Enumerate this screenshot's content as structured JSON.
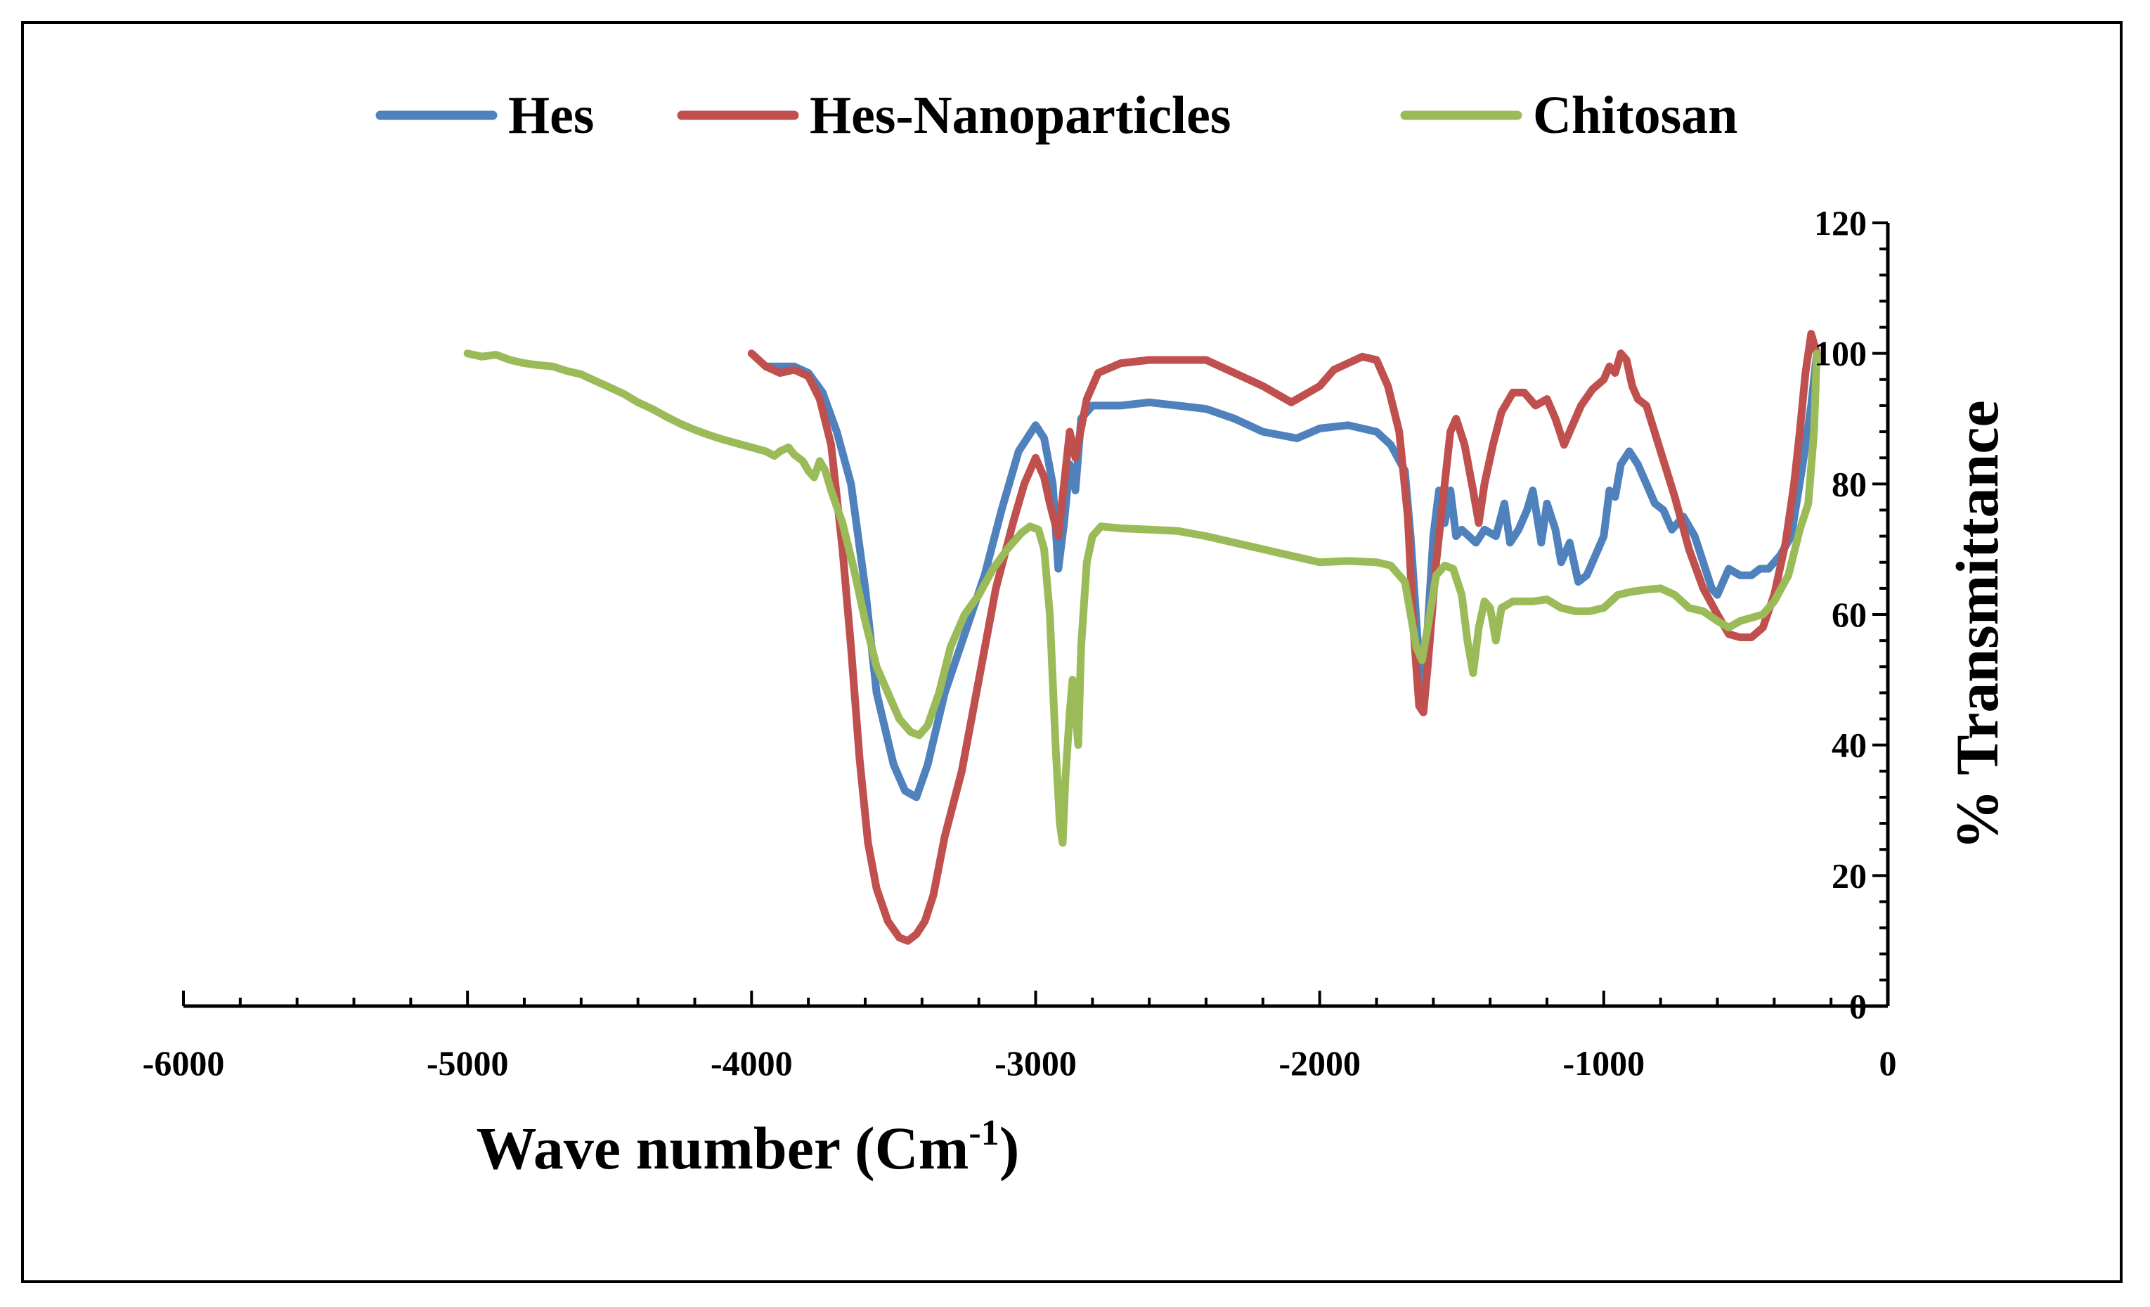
{
  "chart_data": {
    "type": "line",
    "title": "",
    "xlabel": "Wave number (Cm",
    "xlabel_superscript": "-1",
    "xlabel_close": ")",
    "ylabel": "% Transmittance",
    "xlim": [
      -6000,
      0
    ],
    "ylim": [
      0,
      120
    ],
    "x_ticks": [
      -6000,
      -5000,
      -4000,
      -3000,
      -2000,
      -1000,
      0
    ],
    "y_ticks": [
      0,
      20,
      40,
      60,
      80,
      100,
      120
    ],
    "x_minor_step": 200,
    "y_minor_step": 4,
    "y_axis_side": "right",
    "legend_position": "top",
    "series": [
      {
        "name": "Hes",
        "color": "#4F81BD",
        "points": [
          [
            -3950,
            98
          ],
          [
            -3850,
            98
          ],
          [
            -3800,
            97
          ],
          [
            -3750,
            94
          ],
          [
            -3700,
            88
          ],
          [
            -3650,
            80
          ],
          [
            -3600,
            64
          ],
          [
            -3560,
            48
          ],
          [
            -3500,
            37
          ],
          [
            -3460,
            33
          ],
          [
            -3420,
            32
          ],
          [
            -3380,
            37
          ],
          [
            -3320,
            48
          ],
          [
            -3250,
            57
          ],
          [
            -3180,
            66
          ],
          [
            -3120,
            76
          ],
          [
            -3060,
            85
          ],
          [
            -3000,
            89
          ],
          [
            -2970,
            87
          ],
          [
            -2940,
            80
          ],
          [
            -2920,
            67
          ],
          [
            -2900,
            74
          ],
          [
            -2880,
            83
          ],
          [
            -2860,
            79
          ],
          [
            -2840,
            90
          ],
          [
            -2800,
            92
          ],
          [
            -2700,
            92
          ],
          [
            -2600,
            92.5
          ],
          [
            -2500,
            92
          ],
          [
            -2400,
            91.5
          ],
          [
            -2300,
            90
          ],
          [
            -2200,
            88
          ],
          [
            -2080,
            87
          ],
          [
            -2000,
            88.5
          ],
          [
            -1900,
            89
          ],
          [
            -1800,
            88
          ],
          [
            -1750,
            86
          ],
          [
            -1700,
            82
          ],
          [
            -1680,
            72
          ],
          [
            -1655,
            56
          ],
          [
            -1640,
            46
          ],
          [
            -1620,
            58
          ],
          [
            -1600,
            72
          ],
          [
            -1580,
            79
          ],
          [
            -1560,
            74
          ],
          [
            -1540,
            79
          ],
          [
            -1520,
            72
          ],
          [
            -1500,
            73
          ],
          [
            -1450,
            71
          ],
          [
            -1420,
            73
          ],
          [
            -1380,
            72
          ],
          [
            -1350,
            77
          ],
          [
            -1330,
            71
          ],
          [
            -1300,
            73
          ],
          [
            -1270,
            76
          ],
          [
            -1250,
            79
          ],
          [
            -1220,
            71
          ],
          [
            -1200,
            77
          ],
          [
            -1170,
            73
          ],
          [
            -1150,
            68
          ],
          [
            -1120,
            71
          ],
          [
            -1090,
            65
          ],
          [
            -1060,
            66
          ],
          [
            -1030,
            69
          ],
          [
            -1000,
            72
          ],
          [
            -980,
            79
          ],
          [
            -960,
            78
          ],
          [
            -940,
            83
          ],
          [
            -910,
            85
          ],
          [
            -880,
            83
          ],
          [
            -850,
            80
          ],
          [
            -820,
            77
          ],
          [
            -790,
            76
          ],
          [
            -760,
            73
          ],
          [
            -720,
            75
          ],
          [
            -680,
            72
          ],
          [
            -650,
            68
          ],
          [
            -620,
            64
          ],
          [
            -600,
            63
          ],
          [
            -580,
            65
          ],
          [
            -560,
            67
          ],
          [
            -520,
            66
          ],
          [
            -480,
            66
          ],
          [
            -450,
            67
          ],
          [
            -420,
            67
          ],
          [
            -380,
            69
          ],
          [
            -340,
            72
          ],
          [
            -300,
            83
          ],
          [
            -270,
            92
          ],
          [
            -250,
            100
          ]
        ]
      },
      {
        "name": "Hes-Nanoparticles",
        "color": "#C0504D",
        "points": [
          [
            -4000,
            100
          ],
          [
            -3950,
            98
          ],
          [
            -3900,
            97
          ],
          [
            -3850,
            97.5
          ],
          [
            -3800,
            96.5
          ],
          [
            -3760,
            93
          ],
          [
            -3720,
            86
          ],
          [
            -3680,
            70
          ],
          [
            -3650,
            55
          ],
          [
            -3620,
            38
          ],
          [
            -3590,
            25
          ],
          [
            -3560,
            18
          ],
          [
            -3520,
            13
          ],
          [
            -3480,
            10.5
          ],
          [
            -3450,
            10
          ],
          [
            -3420,
            11
          ],
          [
            -3390,
            13
          ],
          [
            -3360,
            17
          ],
          [
            -3320,
            26
          ],
          [
            -3260,
            36
          ],
          [
            -3200,
            50
          ],
          [
            -3140,
            64
          ],
          [
            -3080,
            74
          ],
          [
            -3040,
            80
          ],
          [
            -3000,
            84
          ],
          [
            -2970,
            81
          ],
          [
            -2950,
            77
          ],
          [
            -2920,
            72
          ],
          [
            -2900,
            80
          ],
          [
            -2880,
            88
          ],
          [
            -2860,
            84
          ],
          [
            -2820,
            93
          ],
          [
            -2780,
            97
          ],
          [
            -2700,
            98.5
          ],
          [
            -2600,
            99
          ],
          [
            -2500,
            99
          ],
          [
            -2400,
            99
          ],
          [
            -2300,
            97
          ],
          [
            -2200,
            95
          ],
          [
            -2100,
            92.5
          ],
          [
            -2000,
            95
          ],
          [
            -1950,
            97.5
          ],
          [
            -1850,
            99.5
          ],
          [
            -1800,
            99
          ],
          [
            -1760,
            95
          ],
          [
            -1720,
            88
          ],
          [
            -1690,
            75
          ],
          [
            -1670,
            58
          ],
          [
            -1650,
            46
          ],
          [
            -1635,
            45
          ],
          [
            -1620,
            52
          ],
          [
            -1590,
            68
          ],
          [
            -1560,
            80
          ],
          [
            -1540,
            88
          ],
          [
            -1520,
            90
          ],
          [
            -1490,
            86
          ],
          [
            -1460,
            79
          ],
          [
            -1440,
            74
          ],
          [
            -1420,
            80
          ],
          [
            -1390,
            86
          ],
          [
            -1360,
            91
          ],
          [
            -1320,
            94
          ],
          [
            -1280,
            94
          ],
          [
            -1240,
            92
          ],
          [
            -1200,
            93
          ],
          [
            -1170,
            90
          ],
          [
            -1140,
            86
          ],
          [
            -1120,
            88
          ],
          [
            -1080,
            92
          ],
          [
            -1040,
            94.5
          ],
          [
            -1000,
            96
          ],
          [
            -980,
            98
          ],
          [
            -960,
            97
          ],
          [
            -940,
            100
          ],
          [
            -920,
            99
          ],
          [
            -900,
            95
          ],
          [
            -880,
            93
          ],
          [
            -850,
            92
          ],
          [
            -800,
            85
          ],
          [
            -750,
            78
          ],
          [
            -700,
            70
          ],
          [
            -650,
            64
          ],
          [
            -600,
            60
          ],
          [
            -560,
            57
          ],
          [
            -520,
            56.5
          ],
          [
            -480,
            56.5
          ],
          [
            -440,
            58
          ],
          [
            -400,
            63
          ],
          [
            -360,
            71
          ],
          [
            -330,
            80
          ],
          [
            -310,
            88
          ],
          [
            -290,
            97
          ],
          [
            -270,
            103
          ],
          [
            -250,
            100
          ]
        ]
      },
      {
        "name": "Chitosan",
        "color": "#9BBB59",
        "points": [
          [
            -5000,
            100
          ],
          [
            -4950,
            99.5
          ],
          [
            -4900,
            99.8
          ],
          [
            -4850,
            99
          ],
          [
            -4800,
            98.5
          ],
          [
            -4750,
            98.2
          ],
          [
            -4700,
            98
          ],
          [
            -4650,
            97.3
          ],
          [
            -4600,
            96.8
          ],
          [
            -4550,
            95.8
          ],
          [
            -4500,
            94.8
          ],
          [
            -4450,
            93.8
          ],
          [
            -4400,
            92.5
          ],
          [
            -4350,
            91.5
          ],
          [
            -4300,
            90.3
          ],
          [
            -4250,
            89.2
          ],
          [
            -4200,
            88.3
          ],
          [
            -4150,
            87.5
          ],
          [
            -4100,
            86.8
          ],
          [
            -4050,
            86.2
          ],
          [
            -4000,
            85.6
          ],
          [
            -3950,
            85
          ],
          [
            -3920,
            84.3
          ],
          [
            -3900,
            85
          ],
          [
            -3870,
            85.6
          ],
          [
            -3850,
            84.5
          ],
          [
            -3820,
            83.5
          ],
          [
            -3800,
            82
          ],
          [
            -3780,
            81
          ],
          [
            -3760,
            83.5
          ],
          [
            -3740,
            82
          ],
          [
            -3720,
            79
          ],
          [
            -3680,
            74
          ],
          [
            -3640,
            67
          ],
          [
            -3600,
            59
          ],
          [
            -3560,
            52
          ],
          [
            -3520,
            48
          ],
          [
            -3480,
            44
          ],
          [
            -3440,
            42
          ],
          [
            -3410,
            41.5
          ],
          [
            -3380,
            43
          ],
          [
            -3340,
            48
          ],
          [
            -3300,
            55
          ],
          [
            -3250,
            60
          ],
          [
            -3200,
            63
          ],
          [
            -3150,
            67
          ],
          [
            -3100,
            70
          ],
          [
            -3050,
            72.5
          ],
          [
            -3020,
            73.5
          ],
          [
            -2990,
            73
          ],
          [
            -2970,
            70
          ],
          [
            -2950,
            60
          ],
          [
            -2930,
            40
          ],
          [
            -2915,
            28
          ],
          [
            -2905,
            25
          ],
          [
            -2895,
            35
          ],
          [
            -2880,
            45
          ],
          [
            -2870,
            50
          ],
          [
            -2860,
            45
          ],
          [
            -2850,
            40
          ],
          [
            -2840,
            55
          ],
          [
            -2820,
            68
          ],
          [
            -2800,
            72
          ],
          [
            -2770,
            73.5
          ],
          [
            -2700,
            73.2
          ],
          [
            -2600,
            73
          ],
          [
            -2500,
            72.8
          ],
          [
            -2400,
            72
          ],
          [
            -2300,
            71
          ],
          [
            -2200,
            70
          ],
          [
            -2100,
            69
          ],
          [
            -2000,
            68
          ],
          [
            -1900,
            68.2
          ],
          [
            -1800,
            68
          ],
          [
            -1750,
            67.5
          ],
          [
            -1700,
            65
          ],
          [
            -1680,
            60
          ],
          [
            -1660,
            55
          ],
          [
            -1640,
            53
          ],
          [
            -1620,
            58
          ],
          [
            -1590,
            66
          ],
          [
            -1560,
            67.5
          ],
          [
            -1530,
            67
          ],
          [
            -1500,
            63
          ],
          [
            -1480,
            56
          ],
          [
            -1460,
            51
          ],
          [
            -1440,
            58
          ],
          [
            -1420,
            62
          ],
          [
            -1400,
            61
          ],
          [
            -1380,
            56
          ],
          [
            -1360,
            61
          ],
          [
            -1320,
            62
          ],
          [
            -1250,
            62
          ],
          [
            -1200,
            62.3
          ],
          [
            -1150,
            61
          ],
          [
            -1100,
            60.5
          ],
          [
            -1050,
            60.5
          ],
          [
            -1000,
            61
          ],
          [
            -950,
            63
          ],
          [
            -900,
            63.5
          ],
          [
            -850,
            63.8
          ],
          [
            -800,
            64
          ],
          [
            -750,
            63
          ],
          [
            -700,
            61
          ],
          [
            -650,
            60.5
          ],
          [
            -600,
            59
          ],
          [
            -560,
            58
          ],
          [
            -520,
            59
          ],
          [
            -480,
            59.5
          ],
          [
            -440,
            60
          ],
          [
            -400,
            62
          ],
          [
            -350,
            66
          ],
          [
            -310,
            73
          ],
          [
            -280,
            77
          ],
          [
            -260,
            88
          ],
          [
            -250,
            100
          ]
        ]
      }
    ]
  }
}
